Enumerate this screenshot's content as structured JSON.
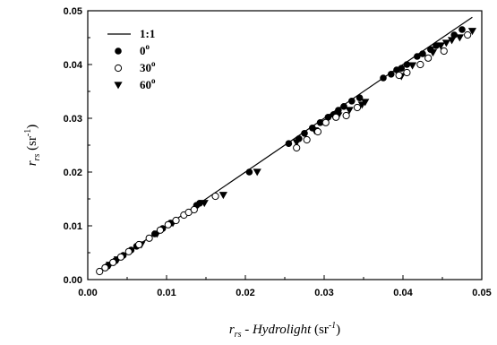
{
  "chart_data": {
    "type": "scatter",
    "xlabel": {
      "r": "r",
      "r_sub": "rs",
      "dash": " - ",
      "model": "Hydrolight",
      "unit_open": " (sr",
      "unit_exp": "-1",
      "unit_close": ")"
    },
    "ylabel": {
      "r": "r",
      "r_sub": "rs",
      "unit_open": " (sr",
      "unit_exp": "-1",
      "unit_close": ")"
    },
    "xlim": [
      0,
      0.05
    ],
    "ylim": [
      0,
      0.05
    ],
    "x_ticks": [
      "0.00",
      "0.01",
      "0.02",
      "0.03",
      "0.04",
      "0.05"
    ],
    "y_ticks": [
      "0.00",
      "0.01",
      "0.02",
      "0.03",
      "0.04",
      "0.05"
    ],
    "grid": false,
    "legend_position": "top-left",
    "legend": [
      {
        "label": "1:1",
        "marker": "line"
      },
      {
        "label": "0",
        "sup": "o",
        "marker": "filled-circle"
      },
      {
        "label": "30",
        "sup": "o",
        "marker": "open-circle"
      },
      {
        "label": "60",
        "sup": "o",
        "marker": "filled-down-triangle"
      }
    ],
    "reference_line": {
      "name": "1:1",
      "x": [
        0.0012,
        0.0488
      ],
      "y": [
        0.0012,
        0.0488
      ]
    },
    "series": [
      {
        "name": "0°",
        "marker": "filled-circle",
        "x": [
          0.0025,
          0.0035,
          0.0045,
          0.0055,
          0.0062,
          0.0085,
          0.0095,
          0.0105,
          0.0138,
          0.0142,
          0.0205,
          0.0255,
          0.0268,
          0.0275,
          0.0285,
          0.0295,
          0.0305,
          0.0312,
          0.0318,
          0.0325,
          0.0335,
          0.0345,
          0.0375,
          0.0385,
          0.0392,
          0.0398,
          0.0405,
          0.0418,
          0.0425,
          0.0435,
          0.0442,
          0.0465,
          0.0475
        ],
        "y": [
          0.0025,
          0.0035,
          0.0045,
          0.0055,
          0.0062,
          0.0085,
          0.0095,
          0.0105,
          0.0138,
          0.0142,
          0.02,
          0.0253,
          0.0262,
          0.0272,
          0.0282,
          0.0292,
          0.0302,
          0.0307,
          0.0315,
          0.0322,
          0.0332,
          0.0338,
          0.0375,
          0.0382,
          0.039,
          0.0393,
          0.04,
          0.0415,
          0.042,
          0.0428,
          0.0435,
          0.0455,
          0.0465
        ]
      },
      {
        "name": "30°",
        "marker": "open-circle",
        "x": [
          0.0015,
          0.0022,
          0.0032,
          0.0042,
          0.0052,
          0.0065,
          0.0078,
          0.0092,
          0.0102,
          0.0112,
          0.0122,
          0.0128,
          0.0135,
          0.0162,
          0.0265,
          0.0278,
          0.0292,
          0.0302,
          0.0315,
          0.0328,
          0.0342,
          0.0395,
          0.0405,
          0.0422,
          0.0432,
          0.0452,
          0.0482
        ],
        "y": [
          0.0015,
          0.0022,
          0.0032,
          0.0042,
          0.0052,
          0.0065,
          0.0077,
          0.0092,
          0.0102,
          0.011,
          0.012,
          0.0125,
          0.013,
          0.0155,
          0.0245,
          0.026,
          0.0275,
          0.0292,
          0.0302,
          0.0305,
          0.032,
          0.038,
          0.0385,
          0.04,
          0.0412,
          0.0425,
          0.0455
        ]
      },
      {
        "name": "60°",
        "marker": "filled-down-triangle",
        "x": [
          0.0028,
          0.0038,
          0.0068,
          0.0088,
          0.0108,
          0.0148,
          0.0172,
          0.0215,
          0.0265,
          0.0288,
          0.0318,
          0.0332,
          0.0348,
          0.0352,
          0.0398,
          0.0412,
          0.0438,
          0.0448,
          0.0455,
          0.0462,
          0.0472,
          0.0488
        ],
        "y": [
          0.0027,
          0.0037,
          0.0065,
          0.0085,
          0.0105,
          0.0142,
          0.0157,
          0.02,
          0.0255,
          0.0277,
          0.0305,
          0.0315,
          0.0325,
          0.033,
          0.0378,
          0.0398,
          0.0422,
          0.0435,
          0.044,
          0.0445,
          0.045,
          0.0462
        ]
      }
    ]
  }
}
